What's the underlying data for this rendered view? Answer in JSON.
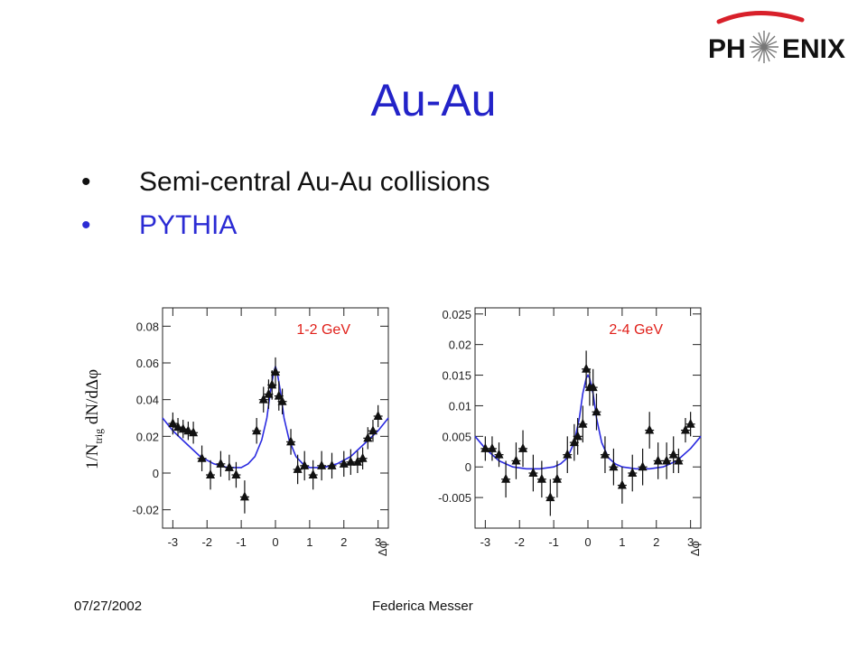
{
  "slide": {
    "title": "Au-Au",
    "bullets": [
      {
        "dot": "•",
        "text": "Semi-central Au-Au collisions"
      },
      {
        "dot": "•",
        "text": "PYTHIA"
      }
    ],
    "logo_text_left": "PH",
    "logo_text_right": "ENIX",
    "footer_date": "07/27/2002",
    "footer_author": "Federica Messer",
    "y_axis_label": "1/N",
    "y_axis_label_sub": "trig",
    "y_axis_label_tail": " dN/dΔφ"
  },
  "colors": {
    "title": "#2323c8",
    "pythia": "#2b2bd4",
    "curve": "#2a2ae0",
    "panel_label": "#e0201a",
    "logo_swoosh": "#d8202a"
  },
  "chart_data": [
    {
      "type": "scatter",
      "annotation": "1-2 GeV",
      "xlabel": "Δφ",
      "ylabel": "1/N_trig dN/dΔφ",
      "xlim": [
        -3.3,
        3.3
      ],
      "ylim": [
        -0.03,
        0.09
      ],
      "x_ticks": [
        -3,
        -2,
        -1,
        0,
        1,
        2,
        3
      ],
      "x_tick_labels": [
        "-3",
        "-2",
        "-1",
        "0",
        "1",
        "2",
        "3"
      ],
      "y_ticks": [
        -0.02,
        0,
        0.02,
        0.04,
        0.06,
        0.08
      ],
      "y_tick_labels": [
        "-0.02",
        "0",
        "0.02",
        "0.04",
        "0.06",
        "0.08"
      ],
      "series": [
        {
          "kind": "data points with error bars",
          "x": [
            -3.0,
            -2.85,
            -2.7,
            -2.55,
            -2.4,
            -2.15,
            -1.9,
            -1.6,
            -1.35,
            -1.15,
            -0.9,
            -0.55,
            -0.35,
            -0.2,
            -0.1,
            0.0,
            0.1,
            0.2,
            0.45,
            0.65,
            0.85,
            1.1,
            1.35,
            1.65,
            2.0,
            2.2,
            2.4,
            2.55,
            2.7,
            2.85,
            3.0
          ],
          "y": [
            0.027,
            0.025,
            0.024,
            0.023,
            0.022,
            0.008,
            -0.001,
            0.005,
            0.003,
            -0.001,
            -0.013,
            0.023,
            0.04,
            0.043,
            0.048,
            0.055,
            0.042,
            0.039,
            0.017,
            0.002,
            0.004,
            -0.001,
            0.004,
            0.004,
            0.005,
            0.006,
            0.006,
            0.008,
            0.019,
            0.023,
            0.031
          ],
          "err": [
            0.006,
            0.005,
            0.005,
            0.005,
            0.006,
            0.007,
            0.008,
            0.007,
            0.007,
            0.007,
            0.009,
            0.007,
            0.007,
            0.008,
            0.008,
            0.008,
            0.008,
            0.007,
            0.007,
            0.008,
            0.008,
            0.008,
            0.008,
            0.007,
            0.007,
            0.007,
            0.006,
            0.006,
            0.006,
            0.006,
            0.006
          ]
        },
        {
          "kind": "PYTHIA curve",
          "x": [
            -3.3,
            -3.0,
            -2.6,
            -2.2,
            -1.8,
            -1.4,
            -1.0,
            -0.8,
            -0.6,
            -0.4,
            -0.25,
            -0.15,
            -0.05,
            0.0,
            0.05,
            0.15,
            0.25,
            0.4,
            0.6,
            0.8,
            1.0,
            1.4,
            1.8,
            2.2,
            2.6,
            3.0,
            3.3
          ],
          "y": [
            0.03,
            0.023,
            0.016,
            0.009,
            0.005,
            0.003,
            0.003,
            0.005,
            0.009,
            0.018,
            0.03,
            0.044,
            0.055,
            0.058,
            0.055,
            0.044,
            0.03,
            0.018,
            0.009,
            0.005,
            0.003,
            0.003,
            0.005,
            0.009,
            0.016,
            0.023,
            0.03
          ]
        }
      ]
    },
    {
      "type": "scatter",
      "annotation": "2-4 GeV",
      "xlabel": "Δφ",
      "ylabel": "1/N_trig dN/dΔφ",
      "xlim": [
        -3.3,
        3.3
      ],
      "ylim": [
        -0.01,
        0.026
      ],
      "x_ticks": [
        -3,
        -2,
        -1,
        0,
        1,
        2,
        3
      ],
      "x_tick_labels": [
        "-3",
        "-2",
        "-1",
        "0",
        "1",
        "2",
        "3"
      ],
      "y_ticks": [
        -0.005,
        0,
        0.005,
        0.01,
        0.015,
        0.02,
        0.025
      ],
      "y_tick_labels": [
        "-0.005",
        "0",
        "0.005",
        "0.01",
        "0.015",
        "0.02",
        "0.025"
      ],
      "series": [
        {
          "kind": "data points with error bars",
          "x": [
            -3.0,
            -2.8,
            -2.6,
            -2.4,
            -2.1,
            -1.9,
            -1.6,
            -1.35,
            -1.1,
            -0.9,
            -0.6,
            -0.4,
            -0.3,
            -0.15,
            -0.05,
            0.05,
            0.15,
            0.25,
            0.5,
            0.75,
            1.0,
            1.3,
            1.6,
            1.8,
            2.05,
            2.3,
            2.5,
            2.65,
            2.85,
            3.0
          ],
          "y": [
            0.003,
            0.003,
            0.002,
            -0.002,
            0.001,
            0.003,
            -0.001,
            -0.002,
            -0.005,
            -0.002,
            0.002,
            0.004,
            0.005,
            0.007,
            0.016,
            0.013,
            0.013,
            0.009,
            0.002,
            0.0,
            -0.003,
            -0.001,
            0.0,
            0.006,
            0.001,
            0.001,
            0.002,
            0.001,
            0.006,
            0.007
          ],
          "err": [
            0.002,
            0.002,
            0.002,
            0.003,
            0.003,
            0.003,
            0.003,
            0.003,
            0.003,
            0.003,
            0.003,
            0.003,
            0.003,
            0.003,
            0.003,
            0.003,
            0.003,
            0.003,
            0.003,
            0.003,
            0.003,
            0.003,
            0.003,
            0.003,
            0.003,
            0.003,
            0.003,
            0.002,
            0.002,
            0.002
          ]
        },
        {
          "kind": "PYTHIA curve",
          "x": [
            -3.3,
            -3.0,
            -2.6,
            -2.2,
            -1.8,
            -1.4,
            -1.0,
            -0.8,
            -0.6,
            -0.4,
            -0.25,
            -0.15,
            -0.05,
            0.0,
            0.05,
            0.15,
            0.25,
            0.4,
            0.6,
            0.8,
            1.0,
            1.4,
            1.8,
            2.2,
            2.6,
            3.0,
            3.3
          ],
          "y": [
            0.005,
            0.003,
            0.001,
            0.0,
            -0.0003,
            -0.0003,
            0.0,
            0.0005,
            0.0015,
            0.004,
            0.008,
            0.012,
            0.0145,
            0.015,
            0.0145,
            0.012,
            0.008,
            0.004,
            0.0015,
            0.0005,
            0.0,
            -0.0003,
            -0.0003,
            0.0,
            0.001,
            0.003,
            0.005
          ]
        }
      ]
    }
  ]
}
